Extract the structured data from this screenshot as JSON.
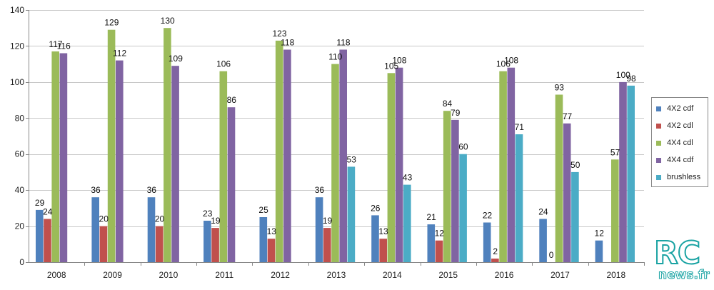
{
  "chart_data": {
    "type": "bar",
    "title": "",
    "xlabel": "",
    "ylabel": "",
    "ylim": [
      0,
      140
    ],
    "yticks": [
      0,
      20,
      40,
      60,
      80,
      100,
      120,
      140
    ],
    "grid": true,
    "legend_position": "right",
    "categories": [
      "2008",
      "2009",
      "2010",
      "2011",
      "2012",
      "2013",
      "2014",
      "2015",
      "2016",
      "2017",
      "2018"
    ],
    "series": [
      {
        "name": "4X2 cdf",
        "color": "#4f81bd",
        "values": [
          29,
          36,
          36,
          23,
          25,
          36,
          26,
          21,
          22,
          24,
          12
        ]
      },
      {
        "name": "4X2 cdl",
        "color": "#c0504d",
        "values": [
          24,
          20,
          20,
          19,
          13,
          19,
          13,
          12,
          2,
          0,
          null
        ]
      },
      {
        "name": "4X4  cdl",
        "color": "#9bbb59",
        "values": [
          117,
          129,
          130,
          106,
          123,
          110,
          105,
          84,
          106,
          93,
          57
        ]
      },
      {
        "name": "4X4 cdf",
        "color": "#8064a2",
        "values": [
          116,
          112,
          109,
          86,
          118,
          118,
          108,
          79,
          108,
          77,
          100
        ]
      },
      {
        "name": "brushless",
        "color": "#4bacc6",
        "values": [
          null,
          null,
          null,
          null,
          null,
          53,
          43,
          60,
          71,
          50,
          98
        ]
      }
    ]
  },
  "watermark": {
    "line1": "RC",
    "line2": "news.fr"
  }
}
